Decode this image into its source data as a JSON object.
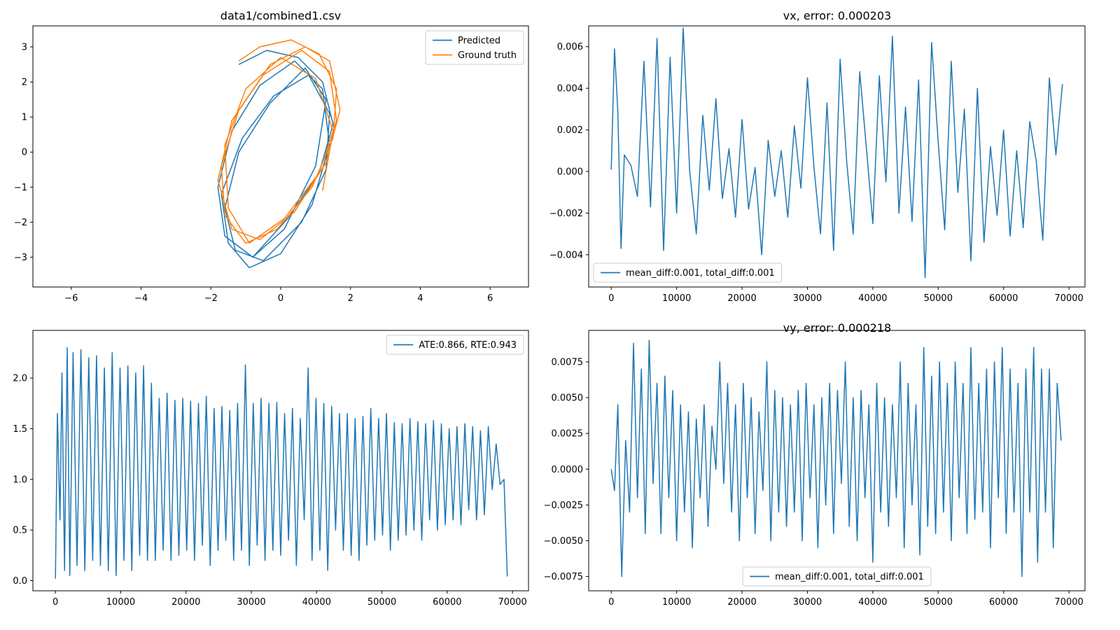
{
  "colors": {
    "blue": "#1f77b4",
    "orange": "#ff7f0e"
  },
  "chart_data": [
    {
      "type": "line",
      "id": "traj",
      "title": "data1/combined1.csv",
      "xlim": [
        -7.1,
        7.1
      ],
      "ylim": [
        -3.85,
        3.6
      ],
      "xticks": [
        "−6",
        "−4",
        "−2",
        "0",
        "2",
        "4",
        "6"
      ],
      "xtick_values": [
        -6,
        -4,
        -2,
        0,
        2,
        4,
        6
      ],
      "yticks": [
        "−3",
        "−2",
        "−1",
        "0",
        "1",
        "2",
        "3"
      ],
      "ytick_values": [
        -3,
        -2,
        -1,
        0,
        1,
        2,
        3
      ],
      "legend": "top-right",
      "series": [
        {
          "name": "Predicted",
          "color": "#1f77b4",
          "x": [
            -1.2,
            -0.4,
            0.5,
            1.2,
            1.5,
            1.1,
            0.2,
            -0.8,
            -1.6,
            -1.8,
            -1.4,
            -0.6,
            0.4,
            1.2,
            1.4,
            0.9,
            0.0,
            -0.9,
            -1.5,
            -1.7,
            -1.1,
            -0.2,
            0.8,
            1.4,
            1.3,
            0.6,
            -0.5,
            -1.3,
            -1.6,
            -1.2,
            -0.3,
            0.7,
            1.3,
            1.0,
            0.1,
            -0.8
          ],
          "y": [
            2.5,
            2.9,
            2.7,
            2.0,
            0.8,
            -0.6,
            -1.9,
            -3.0,
            -2.4,
            -1.0,
            0.6,
            1.9,
            2.6,
            1.8,
            0.2,
            -1.5,
            -2.9,
            -3.3,
            -2.6,
            -1.2,
            0.4,
            1.6,
            2.2,
            1.1,
            -0.5,
            -2.0,
            -3.1,
            -2.8,
            -1.6,
            0.0,
            1.4,
            2.4,
            1.5,
            -0.4,
            -2.2,
            -3.0
          ]
        },
        {
          "name": "Ground truth",
          "color": "#ff7f0e",
          "x": [
            -1.2,
            -0.6,
            0.3,
            1.1,
            1.6,
            1.5,
            0.9,
            -0.1,
            -1.0,
            -1.6,
            -1.7,
            -1.2,
            -0.3,
            0.7,
            1.4,
            1.7,
            1.3,
            0.4,
            -0.6,
            -1.4,
            -1.8,
            -1.4,
            -0.5,
            0.6,
            1.4,
            1.6,
            1.1,
            0.1,
            -0.9,
            -1.5,
            -1.6,
            -1.0,
            0.0,
            1.0,
            1.5,
            1.2
          ],
          "y": [
            2.6,
            3.0,
            3.2,
            2.8,
            1.8,
            0.4,
            -1.0,
            -2.2,
            -2.6,
            -1.8,
            -0.4,
            1.2,
            2.5,
            3.0,
            2.6,
            1.2,
            -0.3,
            -1.7,
            -2.5,
            -2.2,
            -0.8,
            0.9,
            2.2,
            2.9,
            2.3,
            0.9,
            -0.6,
            -1.9,
            -2.6,
            -1.6,
            0.2,
            1.8,
            2.7,
            2.1,
            0.6,
            -1.1
          ]
        }
      ]
    },
    {
      "type": "line",
      "id": "vx",
      "title": "vx, error: 0.000203",
      "xlim": [
        -3450,
        72450
      ],
      "ylim": [
        -0.00555,
        0.007
      ],
      "xticks": [
        "0",
        "10000",
        "20000",
        "30000",
        "40000",
        "50000",
        "60000",
        "70000"
      ],
      "xtick_values": [
        0,
        10000,
        20000,
        30000,
        40000,
        50000,
        60000,
        70000
      ],
      "yticks": [
        "−0.004",
        "−0.002",
        "0.000",
        "0.002",
        "0.004",
        "0.006"
      ],
      "ytick_values": [
        -0.004,
        -0.002,
        0,
        0.002,
        0.004,
        0.006
      ],
      "legend": "bottom-left",
      "series": [
        {
          "name": "mean_diff:0.001, total_diff:0.001",
          "color": "#1f77b4",
          "x": [
            0,
            500,
            1000,
            1500,
            2000,
            3000,
            4000,
            5000,
            6000,
            7000,
            8000,
            9000,
            10000,
            11000,
            12000,
            13000,
            14000,
            15000,
            16000,
            17000,
            18000,
            19000,
            20000,
            21000,
            22000,
            23000,
            24000,
            25000,
            26000,
            27000,
            28000,
            29000,
            30000,
            31000,
            32000,
            33000,
            34000,
            35000,
            36000,
            37000,
            38000,
            39000,
            40000,
            41000,
            42000,
            43000,
            44000,
            45000,
            46000,
            47000,
            48000,
            49000,
            50000,
            51000,
            52000,
            53000,
            54000,
            55000,
            56000,
            57000,
            58000,
            59000,
            60000,
            61000,
            62000,
            63000,
            64000,
            65000,
            66000,
            67000,
            68000,
            69000
          ],
          "y": [
            0.0001,
            0.0059,
            0.0029,
            -0.0037,
            0.0008,
            0.0003,
            -0.0012,
            0.0053,
            -0.0017,
            0.0064,
            -0.0038,
            0.0055,
            -0.002,
            0.0069,
            0.0,
            -0.003,
            0.0027,
            -0.0009,
            0.0035,
            -0.0013,
            0.0011,
            -0.0022,
            0.0025,
            -0.0018,
            0.0002,
            -0.004,
            0.0015,
            -0.0012,
            0.001,
            -0.0022,
            0.0022,
            -0.0008,
            0.0045,
            0.0002,
            -0.003,
            0.0033,
            -0.0038,
            0.0054,
            0.0005,
            -0.003,
            0.0048,
            0.0012,
            -0.0025,
            0.0046,
            -0.0005,
            0.0065,
            -0.002,
            0.0031,
            -0.0024,
            0.0044,
            -0.0051,
            0.0062,
            0.0014,
            -0.0028,
            0.0053,
            -0.001,
            0.003,
            -0.0043,
            0.004,
            -0.0034,
            0.0012,
            -0.0021,
            0.002,
            -0.0031,
            0.001,
            -0.0027,
            0.0024,
            0.0005,
            -0.0033,
            0.0045,
            0.0008,
            0.0042
          ]
        }
      ]
    },
    {
      "type": "line",
      "id": "ate",
      "title": "",
      "xlim": [
        -3450,
        72450
      ],
      "ylim": [
        -0.1,
        2.47
      ],
      "xticks": [
        "0",
        "10000",
        "20000",
        "30000",
        "40000",
        "50000",
        "60000",
        "70000"
      ],
      "xtick_values": [
        0,
        10000,
        20000,
        30000,
        40000,
        50000,
        60000,
        70000
      ],
      "yticks": [
        "0.0",
        "0.5",
        "1.0",
        "1.5",
        "2.0"
      ],
      "ytick_values": [
        0,
        0.5,
        1.0,
        1.5,
        2.0
      ],
      "legend": "top-right",
      "series": [
        {
          "name": "ATE:0.866, RTE:0.943",
          "color": "#1f77b4",
          "x": [
            0,
            300,
            700,
            1000,
            1400,
            1800,
            2200,
            2700,
            3300,
            3900,
            4500,
            5100,
            5700,
            6300,
            6900,
            7500,
            8100,
            8700,
            9300,
            9900,
            10500,
            11100,
            11700,
            12300,
            12900,
            13500,
            14100,
            14700,
            15300,
            15900,
            16500,
            17100,
            17700,
            18300,
            18900,
            19500,
            20100,
            20700,
            21300,
            21900,
            22500,
            23100,
            23700,
            24300,
            24900,
            25500,
            26100,
            26700,
            27300,
            27900,
            28500,
            29100,
            29700,
            30300,
            30900,
            31500,
            32100,
            32700,
            33300,
            33900,
            34500,
            35100,
            35700,
            36300,
            36900,
            37500,
            38100,
            38700,
            39300,
            39900,
            40500,
            41100,
            41700,
            42300,
            42900,
            43500,
            44100,
            44700,
            45300,
            45900,
            46500,
            47100,
            47700,
            48300,
            48900,
            49500,
            50100,
            50700,
            51300,
            51900,
            52500,
            53100,
            53700,
            54300,
            54900,
            55500,
            56100,
            56700,
            57300,
            57900,
            58500,
            59100,
            59700,
            60300,
            60900,
            61500,
            62100,
            62700,
            63300,
            63900,
            64500,
            65100,
            65700,
            66300,
            66900,
            67500,
            68100,
            68700,
            69200
          ],
          "y": [
            0.02,
            1.65,
            0.6,
            2.05,
            0.1,
            2.3,
            0.05,
            2.25,
            0.15,
            2.28,
            0.1,
            2.2,
            0.2,
            2.22,
            0.15,
            2.1,
            0.1,
            2.25,
            0.05,
            2.1,
            0.2,
            2.12,
            0.1,
            2.05,
            0.25,
            2.12,
            0.2,
            1.95,
            0.2,
            1.8,
            0.3,
            1.85,
            0.2,
            1.78,
            0.25,
            1.8,
            0.3,
            1.77,
            0.2,
            1.75,
            0.35,
            1.82,
            0.15,
            1.7,
            0.3,
            1.72,
            0.4,
            1.68,
            0.2,
            1.75,
            0.3,
            2.13,
            0.15,
            1.75,
            0.35,
            1.8,
            0.2,
            1.75,
            0.3,
            1.76,
            0.25,
            1.65,
            0.4,
            1.7,
            0.15,
            1.6,
            0.6,
            2.1,
            0.2,
            1.8,
            0.3,
            1.75,
            0.1,
            1.72,
            0.5,
            1.65,
            0.3,
            1.65,
            0.25,
            1.6,
            0.2,
            1.62,
            0.35,
            1.7,
            0.4,
            1.6,
            0.45,
            1.65,
            0.3,
            1.56,
            0.4,
            1.55,
            0.45,
            1.6,
            0.5,
            1.57,
            0.4,
            1.55,
            0.6,
            1.58,
            0.5,
            1.55,
            0.55,
            1.5,
            0.6,
            1.52,
            0.55,
            1.55,
            0.7,
            1.52,
            0.6,
            1.48,
            0.65,
            1.52,
            0.9,
            1.35,
            0.95,
            1.0,
            0.04
          ]
        }
      ]
    },
    {
      "type": "line",
      "id": "vy",
      "title": "vy, error: 0.000218",
      "xlim": [
        -3450,
        72450
      ],
      "ylim": [
        -0.0085,
        0.0097
      ],
      "xticks": [
        "0",
        "10000",
        "20000",
        "30000",
        "40000",
        "50000",
        "60000",
        "70000"
      ],
      "xtick_values": [
        0,
        10000,
        20000,
        30000,
        40000,
        50000,
        60000,
        70000
      ],
      "yticks": [
        "−0.0075",
        "−0.0050",
        "−0.0025",
        "0.0000",
        "0.0025",
        "0.0050",
        "0.0075"
      ],
      "ytick_values": [
        -0.0075,
        -0.005,
        -0.0025,
        0,
        0.0025,
        0.005,
        0.0075
      ],
      "legend": "bottom-center",
      "series": [
        {
          "name": "mean_diff:0.001, total_diff:0.001",
          "color": "#1f77b4",
          "x": [
            0,
            500,
            1000,
            1600,
            2200,
            2800,
            3400,
            4000,
            4600,
            5200,
            5800,
            6400,
            7000,
            7600,
            8200,
            8800,
            9400,
            10000,
            10600,
            11200,
            11800,
            12400,
            13000,
            13600,
            14200,
            14800,
            15400,
            16000,
            16600,
            17200,
            17800,
            18400,
            19000,
            19600,
            20200,
            20800,
            21400,
            22000,
            22600,
            23200,
            23800,
            24400,
            25000,
            25600,
            26200,
            26800,
            27400,
            28000,
            28600,
            29200,
            29800,
            30400,
            31000,
            31600,
            32200,
            32800,
            33400,
            34000,
            34600,
            35200,
            35800,
            36400,
            37000,
            37600,
            38200,
            38800,
            39400,
            40000,
            40600,
            41200,
            41800,
            42400,
            43000,
            43600,
            44200,
            44800,
            45400,
            46000,
            46600,
            47200,
            47800,
            48400,
            49000,
            49600,
            50200,
            50800,
            51400,
            52000,
            52600,
            53200,
            53800,
            54400,
            55000,
            55600,
            56200,
            56800,
            57400,
            58000,
            58600,
            59200,
            59800,
            60400,
            61000,
            61600,
            62200,
            62800,
            63400,
            64000,
            64600,
            65200,
            65800,
            66400,
            67000,
            67600,
            68200,
            68800
          ],
          "y": [
            0.0,
            -0.0015,
            0.0045,
            -0.0075,
            0.002,
            -0.003,
            0.0088,
            -0.002,
            0.007,
            -0.0045,
            0.009,
            -0.001,
            0.006,
            -0.0045,
            0.0065,
            -0.002,
            0.0055,
            -0.005,
            0.0045,
            -0.003,
            0.004,
            -0.0055,
            0.0035,
            -0.002,
            0.0045,
            -0.004,
            0.003,
            0.0,
            0.0075,
            -0.001,
            0.006,
            -0.003,
            0.0045,
            -0.005,
            0.006,
            -0.002,
            0.005,
            -0.0045,
            0.004,
            -0.0015,
            0.0075,
            -0.005,
            0.0055,
            -0.003,
            0.005,
            -0.004,
            0.0045,
            -0.003,
            0.0055,
            -0.005,
            0.006,
            -0.002,
            0.0045,
            -0.0055,
            0.005,
            -0.0025,
            0.006,
            -0.0045,
            0.0055,
            -0.001,
            0.0075,
            -0.004,
            0.005,
            -0.005,
            0.0055,
            -0.002,
            0.0045,
            -0.0065,
            0.006,
            -0.003,
            0.005,
            -0.004,
            0.0045,
            -0.002,
            0.0075,
            -0.0055,
            0.006,
            -0.0025,
            0.0045,
            -0.006,
            0.0085,
            -0.004,
            0.0065,
            -0.0045,
            0.0075,
            -0.003,
            0.006,
            -0.005,
            0.0075,
            -0.002,
            0.006,
            -0.0045,
            0.0085,
            -0.0035,
            0.006,
            -0.003,
            0.007,
            -0.0055,
            0.0075,
            -0.002,
            0.0085,
            -0.0045,
            0.007,
            -0.003,
            0.006,
            -0.0075,
            0.007,
            -0.003,
            0.0085,
            -0.0065,
            0.007,
            -0.003,
            0.007,
            -0.0055,
            0.006,
            0.002
          ]
        }
      ]
    }
  ]
}
